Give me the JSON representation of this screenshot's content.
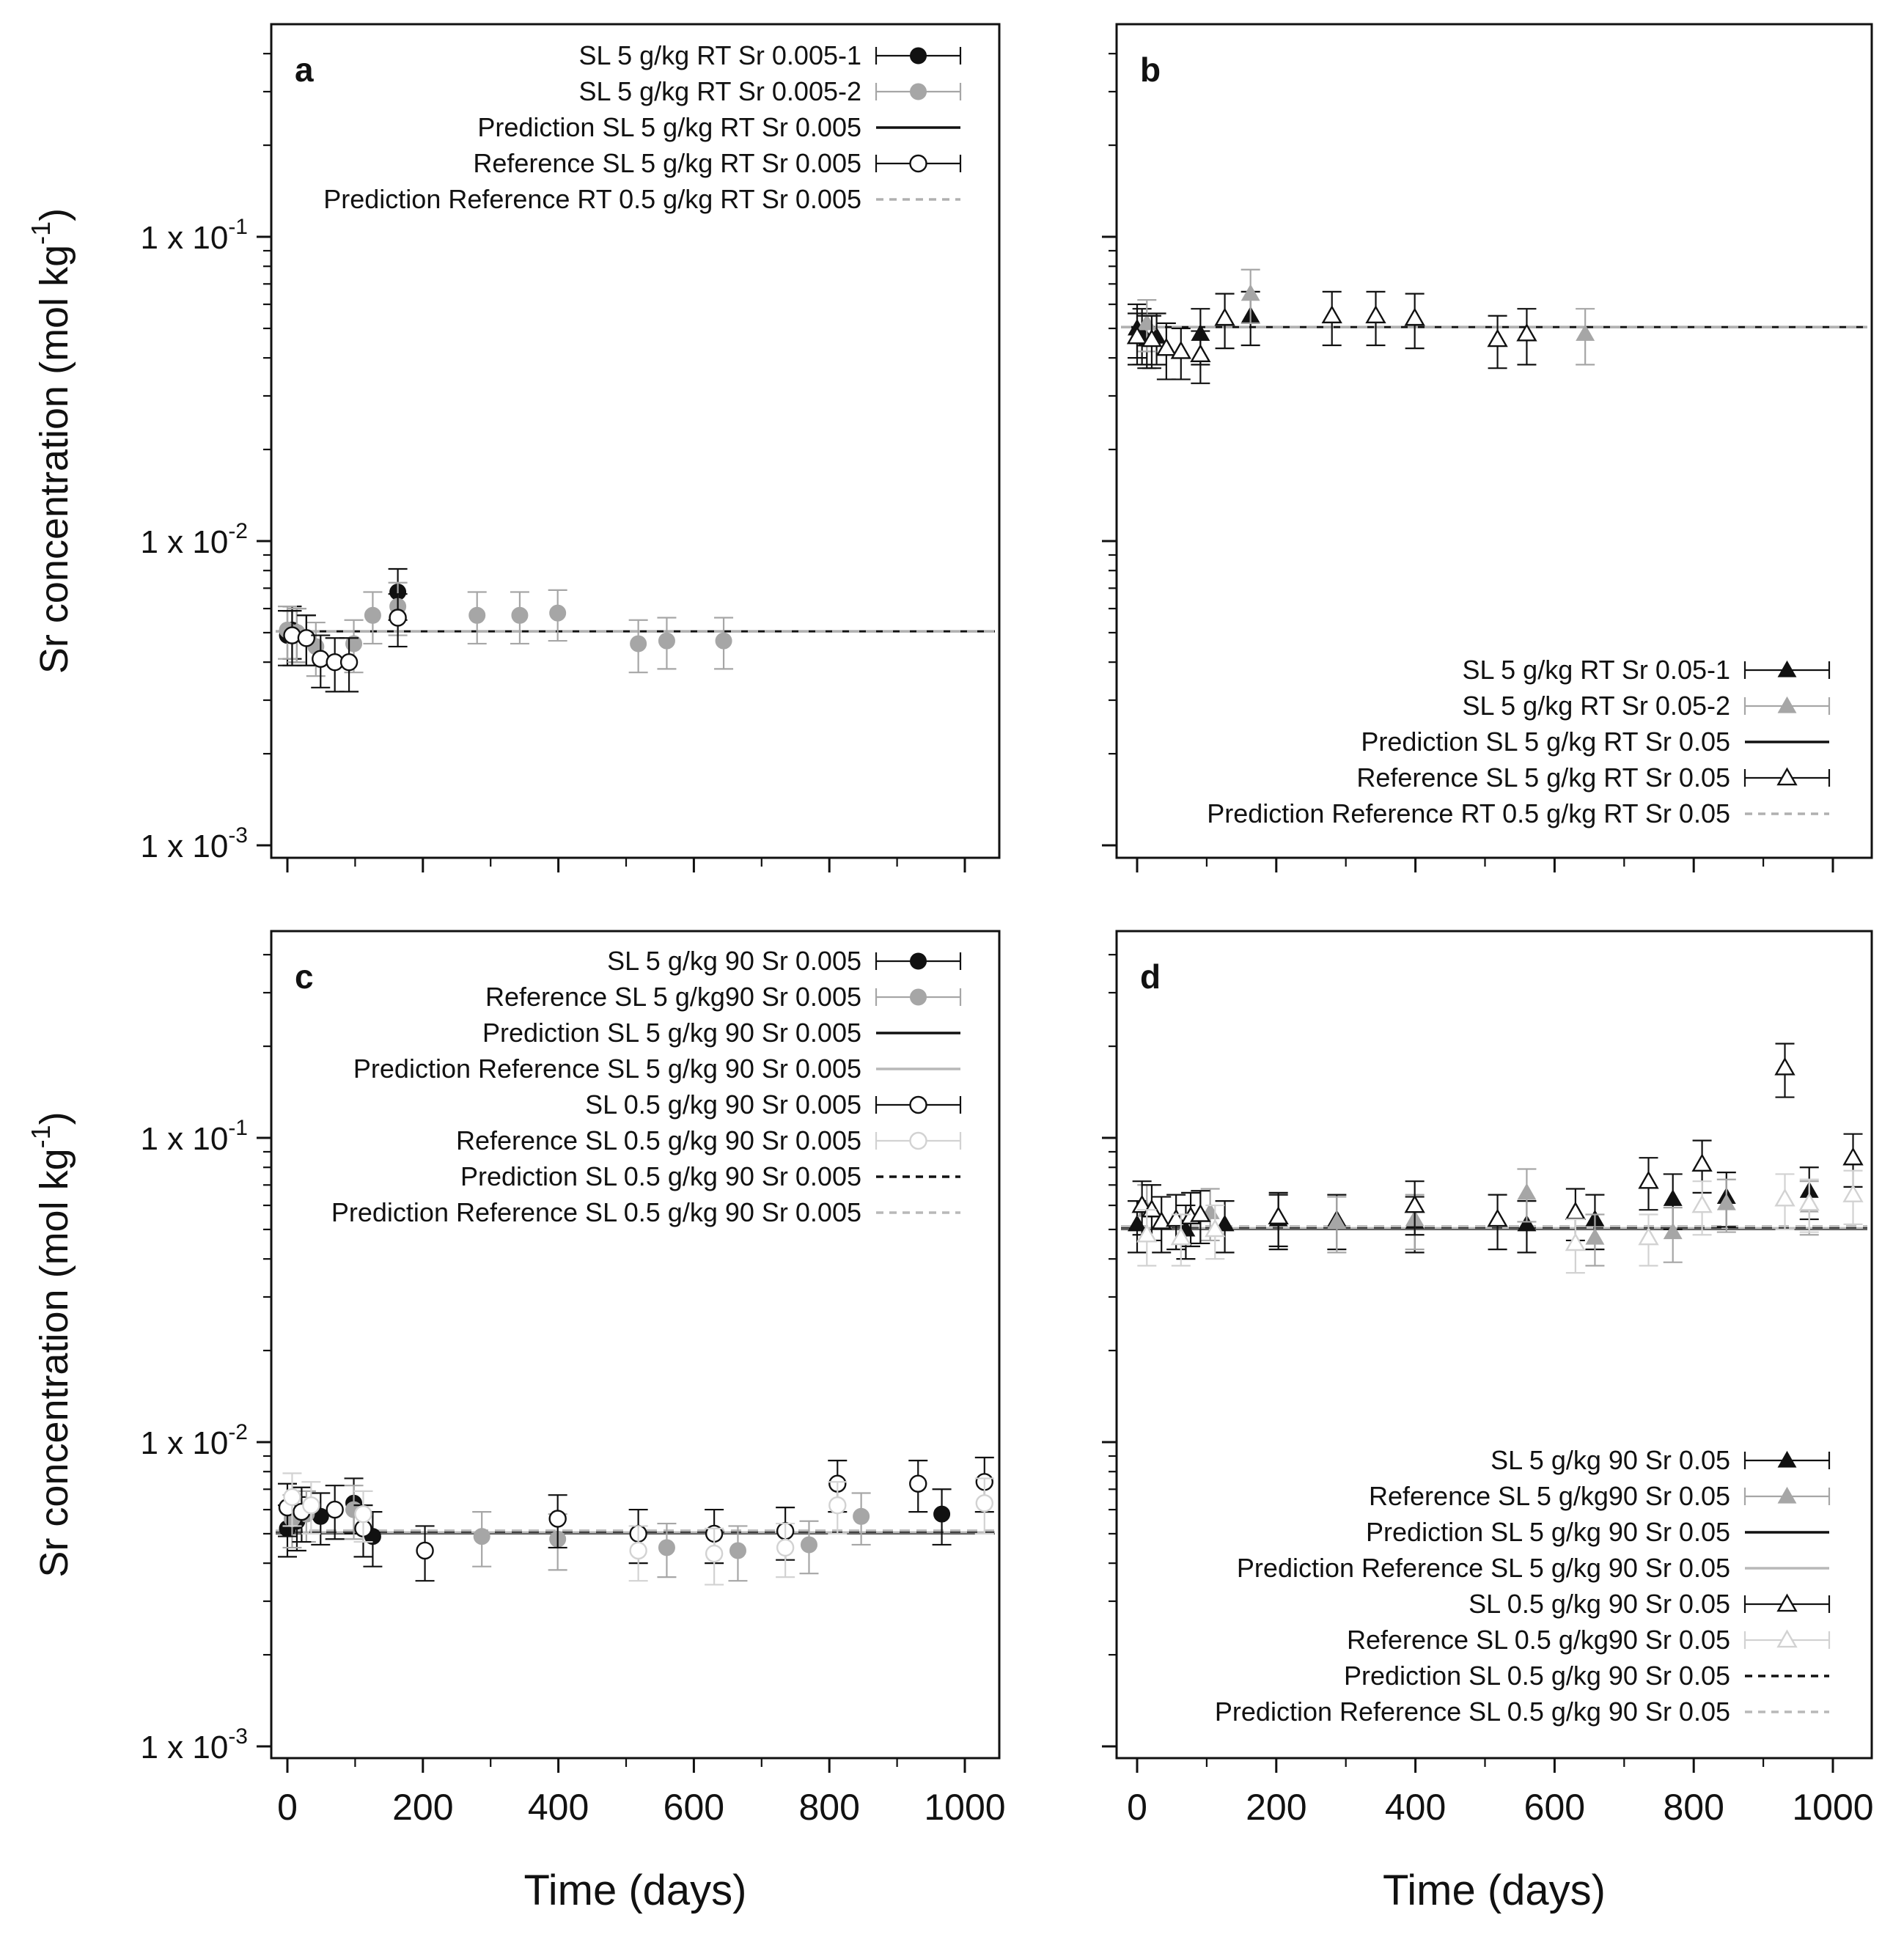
{
  "figure": {
    "x_axis_label": "Time (days)",
    "y_axis_label": "Sr concentration (mol kg",
    "y_axis_label_exp": "-1",
    "y_axis_label_close": ")",
    "y_tick_labels": [
      {
        "value": 0.1,
        "base": "1 x 10",
        "exp": "-1"
      },
      {
        "value": 0.01,
        "base": "1 x 10",
        "exp": "-2"
      },
      {
        "value": 0.001,
        "base": "1 x 10",
        "exp": "-3"
      }
    ],
    "x_tick_labels": [
      "0",
      "200",
      "400",
      "600",
      "800",
      "1000"
    ]
  },
  "colors": {
    "black": "#111111",
    "gray": "#a6a6a6",
    "lightgray": "#d2d2d2"
  },
  "chart_data": [
    {
      "panel": "a",
      "type": "scatter",
      "xlabel": "Time (days)",
      "ylabel": "Sr concentration (mol kg-1)",
      "yscale": "log",
      "xlim": [
        -40,
        1050
      ],
      "ylim": [
        0.001,
        0.5
      ],
      "legend_position": "top-right",
      "series": [
        {
          "name": "SL 5 g/kg RT Sr 0.005-1",
          "marker": "circle",
          "filled": true,
          "color": "#111111",
          "x": [
            0,
            7,
            14,
            28,
            163
          ],
          "y": [
            0.0049,
            0.0051,
            0.005,
            0.0048,
            0.0068
          ],
          "err": [
            0.001,
            0.001,
            0.001,
            0.0009,
            0.0013
          ]
        },
        {
          "name": "SL 5 g/kg RT Sr 0.005-2",
          "marker": "circle",
          "filled": true,
          "color": "#a6a6a6",
          "x": [
            0,
            14,
            42,
            98,
            126,
            163,
            280,
            343,
            399,
            518,
            560,
            644
          ],
          "y": [
            0.0051,
            0.005,
            0.0045,
            0.0046,
            0.0057,
            0.0061,
            0.0057,
            0.0057,
            0.0058,
            0.0046,
            0.0047,
            0.0047
          ],
          "err": [
            0.001,
            0.001,
            0.0009,
            0.0009,
            0.0011,
            0.0012,
            0.0011,
            0.0011,
            0.0011,
            0.0009,
            0.0009,
            0.0009
          ]
        },
        {
          "name": "Reference SL 5 g/kg RT Sr 0.005",
          "marker": "circle",
          "filled": false,
          "color": "#111111",
          "x": [
            7,
            28,
            49,
            70,
            91,
            163
          ],
          "y": [
            0.0049,
            0.0048,
            0.0041,
            0.004,
            0.004,
            0.0056
          ],
          "err": [
            0.001,
            0.0009,
            0.0008,
            0.0008,
            0.0008,
            0.0011
          ]
        }
      ],
      "lines": [
        {
          "name": "Prediction SL 5 g/kg RT Sr 0.005",
          "y": 0.00505,
          "style": "solid",
          "color": "#111111"
        },
        {
          "name": "Prediction Reference RT 0.5 g/kg RT Sr 0.005",
          "y": 0.00505,
          "style": "dashed",
          "color": "#b0b0b0"
        }
      ]
    },
    {
      "panel": "b",
      "type": "scatter",
      "xlabel": "Time (days)",
      "ylabel": "Sr concentration (mol kg-1)",
      "yscale": "log",
      "xlim": [
        -10,
        1050
      ],
      "ylim": [
        0.001,
        0.5
      ],
      "legend_position": "bottom-right",
      "series": [
        {
          "name": "SL 5 g/kg RT Sr 0.05-1",
          "marker": "triangle",
          "filled": true,
          "color": "#111111",
          "x": [
            0,
            7,
            14,
            28,
            91,
            163
          ],
          "y": [
            0.05,
            0.048,
            0.046,
            0.047,
            0.048,
            0.055
          ],
          "err": [
            0.01,
            0.01,
            0.009,
            0.009,
            0.01,
            0.011
          ]
        },
        {
          "name": "SL 5 g/kg RT Sr 0.05-2",
          "marker": "triangle",
          "filled": true,
          "color": "#a6a6a6",
          "x": [
            14,
            163,
            644
          ],
          "y": [
            0.052,
            0.065,
            0.048
          ],
          "err": [
            0.01,
            0.013,
            0.01
          ]
        },
        {
          "name": "Reference SL 5 g/kg RT Sr 0.05",
          "marker": "triangle",
          "filled": false,
          "color": "#111111",
          "x": [
            0,
            21,
            42,
            63,
            91,
            126,
            280,
            343,
            399,
            518,
            560
          ],
          "y": [
            0.047,
            0.046,
            0.043,
            0.042,
            0.041,
            0.054,
            0.055,
            0.055,
            0.054,
            0.046,
            0.048
          ],
          "err": [
            0.009,
            0.009,
            0.009,
            0.008,
            0.008,
            0.011,
            0.011,
            0.011,
            0.011,
            0.009,
            0.01
          ]
        }
      ],
      "lines": [
        {
          "name": "Prediction SL 5 g/kg RT Sr 0.05",
          "y": 0.0505,
          "style": "solid",
          "color": "#111111"
        },
        {
          "name": "Prediction Reference RT 0.5 g/kg RT Sr 0.05",
          "y": 0.0505,
          "style": "dashed",
          "color": "#b0b0b0"
        }
      ]
    },
    {
      "panel": "c",
      "type": "scatter",
      "xlabel": "Time (days)",
      "ylabel": "Sr concentration (mol kg-1)",
      "yscale": "log",
      "xlim": [
        -20,
        1050
      ],
      "ylim": [
        0.001,
        0.5
      ],
      "legend_position": "top-right",
      "series": [
        {
          "name": "SL 5 g/kg 90 Sr 0.005",
          "marker": "circle",
          "filled": true,
          "color": "#111111",
          "x": [
            0,
            14,
            49,
            98,
            126,
            966
          ],
          "y": [
            0.0052,
            0.0055,
            0.0057,
            0.0063,
            0.0049,
            0.0058
          ],
          "err": [
            0.001,
            0.0011,
            0.0011,
            0.0013,
            0.001,
            0.0012
          ]
        },
        {
          "name": "Reference SL 5 g/kg90 Sr 0.005",
          "marker": "circle",
          "filled": true,
          "color": "#a6a6a6",
          "x": [
            7,
            28,
            98,
            287,
            399,
            560,
            665,
            770,
            847
          ],
          "y": [
            0.0056,
            0.0058,
            0.006,
            0.0049,
            0.0048,
            0.0045,
            0.0044,
            0.0046,
            0.0057
          ],
          "err": [
            0.0011,
            0.0011,
            0.0012,
            0.001,
            0.001,
            0.0009,
            0.0009,
            0.0009,
            0.0011
          ]
        },
        {
          "name": "SL 0.5 g/kg 90 Sr 0.005",
          "marker": "circle",
          "filled": false,
          "color": "#111111",
          "x": [
            0,
            21,
            70,
            112,
            203,
            399,
            518,
            630,
            735,
            812,
            931,
            1029
          ],
          "y": [
            0.0061,
            0.0059,
            0.006,
            0.0052,
            0.0044,
            0.0056,
            0.005,
            0.005,
            0.0051,
            0.0073,
            0.0073,
            0.0074
          ],
          "err": [
            0.0012,
            0.0012,
            0.0012,
            0.001,
            0.0009,
            0.0011,
            0.001,
            0.001,
            0.001,
            0.0014,
            0.0014,
            0.0015
          ]
        },
        {
          "name": "Reference SL 0.5 g/kg 90 Sr 0.005",
          "marker": "circle",
          "filled": false,
          "color": "#d2d2d2",
          "x": [
            7,
            35,
            112,
            518,
            630,
            735,
            812,
            1029
          ],
          "y": [
            0.0066,
            0.0062,
            0.0058,
            0.0044,
            0.0043,
            0.0045,
            0.0062,
            0.0063
          ],
          "err": [
            0.0013,
            0.0012,
            0.0011,
            0.0009,
            0.0009,
            0.0009,
            0.0012,
            0.0013
          ]
        }
      ],
      "lines": [
        {
          "name": "Prediction SL 5 g/kg 90 Sr 0.005",
          "y": 0.00502,
          "style": "solid",
          "color": "#111111"
        },
        {
          "name": "Prediction Reference SL 5 g/kg 90 Sr 0.005",
          "y": 0.00505,
          "style": "solid",
          "color": "#b8b8b8"
        },
        {
          "name": "Prediction SL 0.5 g/kg 90 Sr 0.005",
          "y": 0.00508,
          "style": "dashed",
          "color": "#111111"
        },
        {
          "name": "Prediction Reference SL 0.5 g/kg 90 Sr 0.005",
          "y": 0.00512,
          "style": "dashed",
          "color": "#b8b8b8"
        }
      ]
    },
    {
      "panel": "d",
      "type": "scatter",
      "xlabel": "Time (days)",
      "ylabel": "Sr concentration (mol kg-1)",
      "yscale": "log",
      "xlim": [
        -10,
        1050
      ],
      "ylim": [
        0.001,
        0.5
      ],
      "legend_position": "bottom-right",
      "series": [
        {
          "name": "SL 5 g/kg 90 Sr 0.05",
          "marker": "triangle",
          "filled": true,
          "color": "#111111",
          "x": [
            0,
            70,
            126,
            203,
            287,
            399,
            560,
            658,
            770,
            847,
            966
          ],
          "y": [
            0.052,
            0.05,
            0.052,
            0.054,
            0.054,
            0.053,
            0.052,
            0.054,
            0.063,
            0.064,
            0.067
          ],
          "err": [
            0.01,
            0.01,
            0.01,
            0.011,
            0.011,
            0.011,
            0.01,
            0.011,
            0.013,
            0.013,
            0.013
          ]
        },
        {
          "name": "Reference SL 5 g/kg90 Sr 0.05",
          "marker": "triangle",
          "filled": true,
          "color": "#a6a6a6",
          "x": [
            14,
            105,
            287,
            399,
            560,
            658,
            770,
            847,
            966
          ],
          "y": [
            0.058,
            0.057,
            0.053,
            0.054,
            0.066,
            0.047,
            0.049,
            0.061,
            0.06
          ],
          "err": [
            0.012,
            0.011,
            0.011,
            0.011,
            0.013,
            0.009,
            0.01,
            0.012,
            0.012
          ]
        },
        {
          "name": "SL 0.5 g/kg 90 Sr 0.05",
          "marker": "triangle",
          "filled": false,
          "color": "#111111",
          "x": [
            7,
            21,
            35,
            56,
            77,
            91,
            203,
            399,
            518,
            630,
            735,
            812,
            931,
            1029
          ],
          "y": [
            0.06,
            0.058,
            0.053,
            0.054,
            0.055,
            0.056,
            0.055,
            0.06,
            0.054,
            0.057,
            0.072,
            0.082,
            0.17,
            0.086
          ],
          "err": [
            0.012,
            0.012,
            0.011,
            0.011,
            0.011,
            0.011,
            0.011,
            0.012,
            0.011,
            0.011,
            0.014,
            0.016,
            0.034,
            0.017
          ]
        },
        {
          "name": "Reference SL 0.5 g/kg90 Sr 0.05",
          "marker": "triangle",
          "filled": false,
          "color": "#d2d2d2",
          "x": [
            14,
            63,
            112,
            630,
            735,
            812,
            931,
            966,
            1029
          ],
          "y": [
            0.048,
            0.047,
            0.05,
            0.045,
            0.047,
            0.06,
            0.063,
            0.061,
            0.065
          ],
          "err": [
            0.01,
            0.009,
            0.01,
            0.009,
            0.009,
            0.012,
            0.013,
            0.012,
            0.013
          ]
        }
      ],
      "lines": [
        {
          "name": "Prediction SL 5 g/kg 90 Sr 0.05",
          "y": 0.0502,
          "style": "solid",
          "color": "#111111"
        },
        {
          "name": "Prediction Reference SL 5 g/kg 90 Sr 0.05",
          "y": 0.0505,
          "style": "solid",
          "color": "#b8b8b8"
        },
        {
          "name": "Prediction SL 0.5 g/kg 90 Sr 0.05",
          "y": 0.0508,
          "style": "dashed",
          "color": "#111111"
        },
        {
          "name": "Prediction Reference SL 0.5 g/kg 90 Sr 0.05",
          "y": 0.0512,
          "style": "dashed",
          "color": "#b8b8b8"
        }
      ]
    }
  ]
}
